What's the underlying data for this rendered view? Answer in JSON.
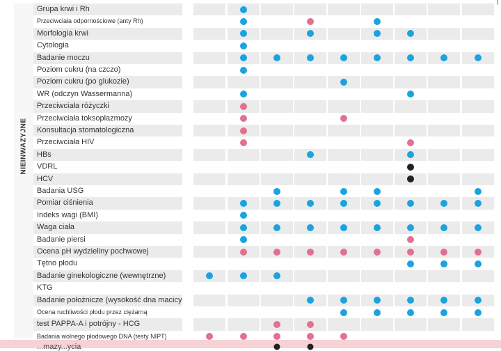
{
  "side_label": "NIEINWAZYJNE",
  "dot_colors": {
    "blue": "#1aa3df",
    "pink": "#e3708f",
    "black": "#222222"
  },
  "rows": [
    {
      "label": "Grupa krwi i Rh",
      "marks": {
        "2": "blue"
      }
    },
    {
      "label": "Przeciwciała odpornościowe (anty Rh)",
      "small": true,
      "marks": {
        "2": "blue",
        "4": "pink",
        "6": "blue"
      }
    },
    {
      "label": "Morfologia krwi",
      "marks": {
        "2": "blue",
        "4": "blue",
        "6": "blue",
        "7": "blue"
      }
    },
    {
      "label": "Cytologia",
      "marks": {
        "2": "blue"
      }
    },
    {
      "label": "Badanie moczu",
      "marks": {
        "2": "blue",
        "3": "blue",
        "4": "blue",
        "5": "blue",
        "6": "blue",
        "7": "blue",
        "8": "blue",
        "9": "blue"
      }
    },
    {
      "label": "Poziom cukru (na czczo)",
      "marks": {
        "2": "blue"
      }
    },
    {
      "label": "Poziom cukru (po glukozie)",
      "marks": {
        "5": "blue"
      }
    },
    {
      "label": "WR (odczyn Wassermanna)",
      "marks": {
        "2": "blue",
        "7": "blue"
      }
    },
    {
      "label": "Przeciwciała różyczki",
      "marks": {
        "2": "pink"
      }
    },
    {
      "label": "Przeciwciała toksoplazmozy",
      "marks": {
        "2": "pink",
        "5": "pink"
      }
    },
    {
      "label": "Konsultacja stomatologiczna",
      "marks": {
        "2": "pink"
      }
    },
    {
      "label": "Przeciwciała HIV",
      "marks": {
        "2": "pink",
        "7": "pink"
      }
    },
    {
      "label": "HBs",
      "marks": {
        "4": "blue",
        "7": "blue"
      }
    },
    {
      "label": "VDRL",
      "marks": {
        "7": "black"
      }
    },
    {
      "label": "HCV",
      "marks": {
        "7": "black"
      }
    },
    {
      "label": "Badania USG",
      "marks": {
        "3": "blue",
        "5": "blue",
        "6": "blue",
        "9": "blue"
      }
    },
    {
      "label": "Pomiar ciśnienia",
      "marks": {
        "2": "blue",
        "3": "blue",
        "4": "blue",
        "5": "blue",
        "6": "blue",
        "7": "blue",
        "8": "blue",
        "9": "blue"
      }
    },
    {
      "label": "Indeks wagi (BMI)",
      "marks": {
        "2": "blue"
      }
    },
    {
      "label": "Waga ciała",
      "marks": {
        "2": "blue",
        "3": "blue",
        "4": "blue",
        "5": "blue",
        "6": "blue",
        "7": "blue",
        "8": "blue",
        "9": "blue"
      }
    },
    {
      "label": "Badanie piersi",
      "marks": {
        "2": "blue",
        "7": "pink"
      }
    },
    {
      "label": "Ocena pH wydzieliny pochwowej",
      "marks": {
        "2": "pink",
        "3": "pink",
        "4": "pink",
        "5": "pink",
        "6": "pink",
        "7": "pink",
        "8": "pink",
        "9": "pink"
      }
    },
    {
      "label": "Tętno płodu",
      "marks": {
        "7": "blue",
        "8": "blue",
        "9": "blue"
      }
    },
    {
      "label": "Badanie ginekologiczne (wewnętrzne)",
      "marks": {
        "1": "blue",
        "2": "blue",
        "3": "blue"
      }
    },
    {
      "label": "KTG",
      "marks": {}
    },
    {
      "label": "Badanie położnicze (wysokość dna macicy)",
      "marks": {
        "4": "blue",
        "5": "blue",
        "6": "blue",
        "7": "blue",
        "8": "blue",
        "9": "blue"
      }
    },
    {
      "label": "Ocena ruchliwości płodu przez ciężarną",
      "small": true,
      "marks": {
        "5": "blue",
        "6": "blue",
        "7": "blue",
        "8": "blue",
        "9": "blue"
      }
    },
    {
      "label": "test PAPPA-A i potrójny - HCG",
      "marks": {
        "3": "pink",
        "4": "pink"
      }
    },
    {
      "label": "Badania wolnego płodowego DNA (testy NIPT)",
      "small": true,
      "marks": {
        "1": "pink",
        "2": "pink",
        "3": "pink",
        "4": "pink",
        "5": "pink"
      }
    }
  ],
  "last_row": {
    "label": "...mazy...ycia",
    "marks": {
      "3": "black",
      "4": "black"
    }
  }
}
